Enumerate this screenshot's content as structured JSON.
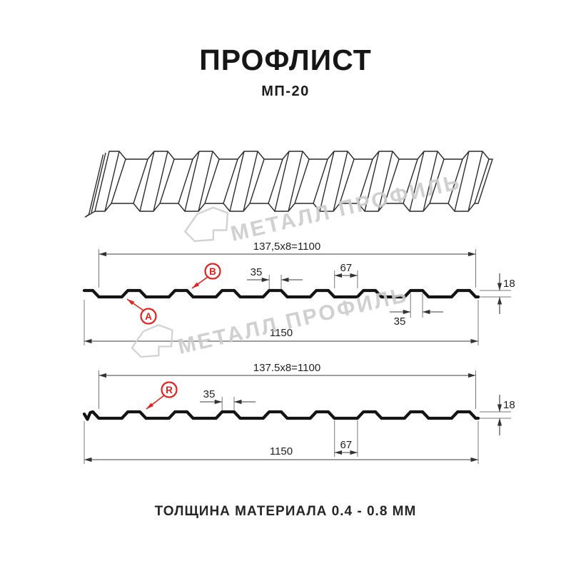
{
  "header": {
    "title": "ПРОФЛИСТ",
    "subtitle": "МП-20"
  },
  "watermark": {
    "text": "МЕТАЛЛ ПРОФИЛЬ"
  },
  "sections": [
    {
      "name": "cross-section-A-B",
      "dims": {
        "pitch": "137,5x8=1100",
        "rib_top": "35",
        "valley": "67",
        "rib_bottom": "35",
        "height": "18",
        "width": "1150"
      },
      "labels": [
        "A",
        "B"
      ]
    },
    {
      "name": "cross-section-R",
      "dims": {
        "pitch": "137.5x8=1100",
        "rib_top": "35",
        "valley": "67",
        "height": "18",
        "width": "1150"
      },
      "labels": [
        "R"
      ]
    }
  ],
  "footer": {
    "text": "ТОЛЩИНА МАТЕРИАЛА 0.4 - 0.8 ММ"
  },
  "profile_spec": {
    "model": "МП-20",
    "pitch_mm": 137.5,
    "ribs_per_sheet": 8,
    "covering_width_mm": 1100,
    "overall_width_mm": 1150,
    "profile_height_mm": 18,
    "rib_top_mm": 35,
    "valley_mm": 67,
    "thickness_range_mm": "0.4 - 0.8"
  },
  "colors": {
    "accent_red": "#e3211d",
    "line_black": "#141414",
    "watermark_gray": "#cbcbcb",
    "background": "#ffffff"
  }
}
